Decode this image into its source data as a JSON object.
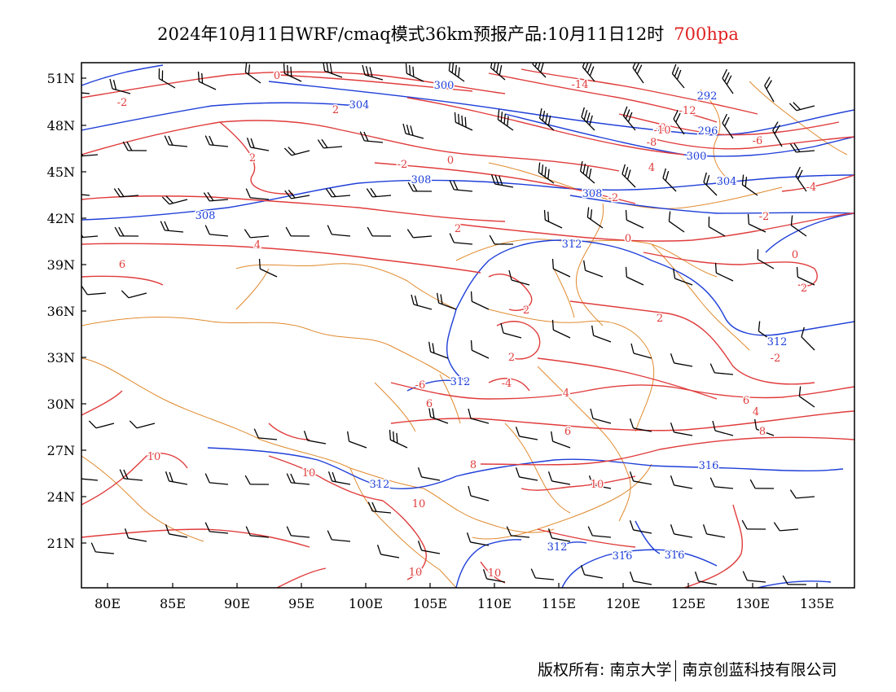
{
  "title": {
    "main": "2024年10月11日WRF/cmaq模式36km预报产品:10月11日12时",
    "level": "700hpa"
  },
  "colors": {
    "temperature_contour": "#e03c3c",
    "height_contour": "#1f3fd8",
    "border": "#e08a2e",
    "wind_barb": "#000000"
  },
  "axes": {
    "lat_ticks": [
      "51N",
      "48N",
      "45N",
      "42N",
      "39N",
      "36N",
      "33N",
      "30N",
      "27N",
      "24N",
      "21N"
    ],
    "lon_ticks": [
      "80E",
      "85E",
      "90E",
      "95E",
      "100E",
      "105E",
      "110E",
      "115E",
      "120E",
      "125E",
      "130E",
      "135E"
    ]
  },
  "height_labels": [
    "300",
    "304",
    "292",
    "296",
    "300",
    "308",
    "308",
    "304",
    "308",
    "312",
    "312",
    "312",
    "316",
    "312",
    "316",
    "316",
    "312"
  ],
  "temp_labels": [
    "-2",
    "0",
    "2",
    "-2",
    "-14",
    "-12",
    "-10",
    "-8",
    "-6",
    "2",
    "0",
    "4",
    "-2",
    "-4",
    "-2",
    "2",
    "4",
    "6",
    "0",
    "0",
    "2",
    "2",
    "2",
    "2",
    "-4",
    "-6",
    "4",
    "6",
    "-2",
    "-2",
    "4",
    "6",
    "8",
    "10",
    "10",
    "6",
    "10",
    "8",
    "10",
    "10",
    "10"
  ],
  "footer": {
    "copyright": "版权所有: 南京大学",
    "company": "南京创蓝科技有限公司"
  }
}
